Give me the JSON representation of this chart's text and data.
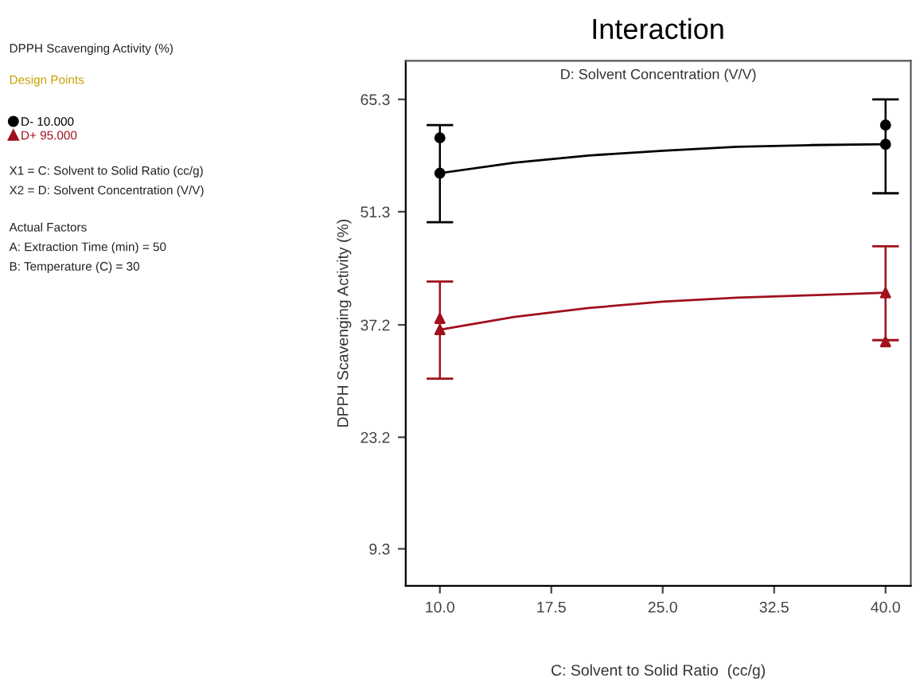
{
  "chart_data": {
    "type": "line",
    "title": "Interaction",
    "subtitle": "D: Solvent Concentration (V/V)",
    "xlabel": "C: Solvent to Solid Ratio  (cc/g)",
    "ylabel": "DPPH Scavenging Activity (%)",
    "xlim": [
      7.7,
      41.7
    ],
    "ylim": [
      4.7,
      70.1
    ],
    "xticks": [
      {
        "value": 10,
        "label": "10.0"
      },
      17.5,
      {
        "value": 25,
        "label": "25.0"
      },
      32.5,
      {
        "value": 40,
        "label": "40.0"
      }
    ],
    "yticks": [
      9.3,
      23.2,
      37.2,
      51.3,
      65.3
    ],
    "grid": false,
    "legend": "left",
    "annotations": [
      "DPPH Scavenging Activity (%)",
      "Design Points",
      "X1 = C: Solvent to Solid Ratio (cc/g)",
      "X2 = D: Solvent Concentration (V/V)",
      "Actual Factors",
      "A: Extraction Time (min) = 50",
      "B: Temperature (C) = 30"
    ],
    "series": [
      {
        "color": "#000000",
        "marker": "none",
        "x": [
          10,
          15,
          20,
          25,
          30,
          35,
          40
        ],
        "values": [
          56.1,
          57.4,
          58.3,
          58.9,
          59.4,
          59.6,
          59.7
        ],
        "errors": [
          [
            50.0,
            62.1
          ],
          null,
          null,
          null,
          null,
          null,
          [
            53.6,
            65.3
          ]
        ]
      },
      {
        "color": "#a0101c",
        "marker": "none",
        "x": [
          10,
          15,
          20,
          25,
          30,
          35,
          40
        ],
        "values": [
          36.6,
          38.2,
          39.3,
          40.1,
          40.6,
          40.9,
          41.2
        ],
        "errors": [
          [
            30.5,
            42.6
          ],
          null,
          null,
          null,
          null,
          null,
          [
            35.3,
            47.0
          ]
        ]
      },
      {
        "type": "scatter",
        "name": "D- 10.000",
        "color": "#000000",
        "marker": "circle",
        "x": [
          10,
          10,
          40,
          40
        ],
        "values": [
          60.5,
          56.1,
          62.1,
          59.7
        ]
      },
      {
        "type": "scatter",
        "name": "D+ 95.000",
        "color": "#a0101c",
        "marker": "triangle",
        "x": [
          10,
          10,
          40,
          40
        ],
        "values": [
          38.0,
          36.6,
          41.2,
          35.1
        ]
      }
    ]
  }
}
